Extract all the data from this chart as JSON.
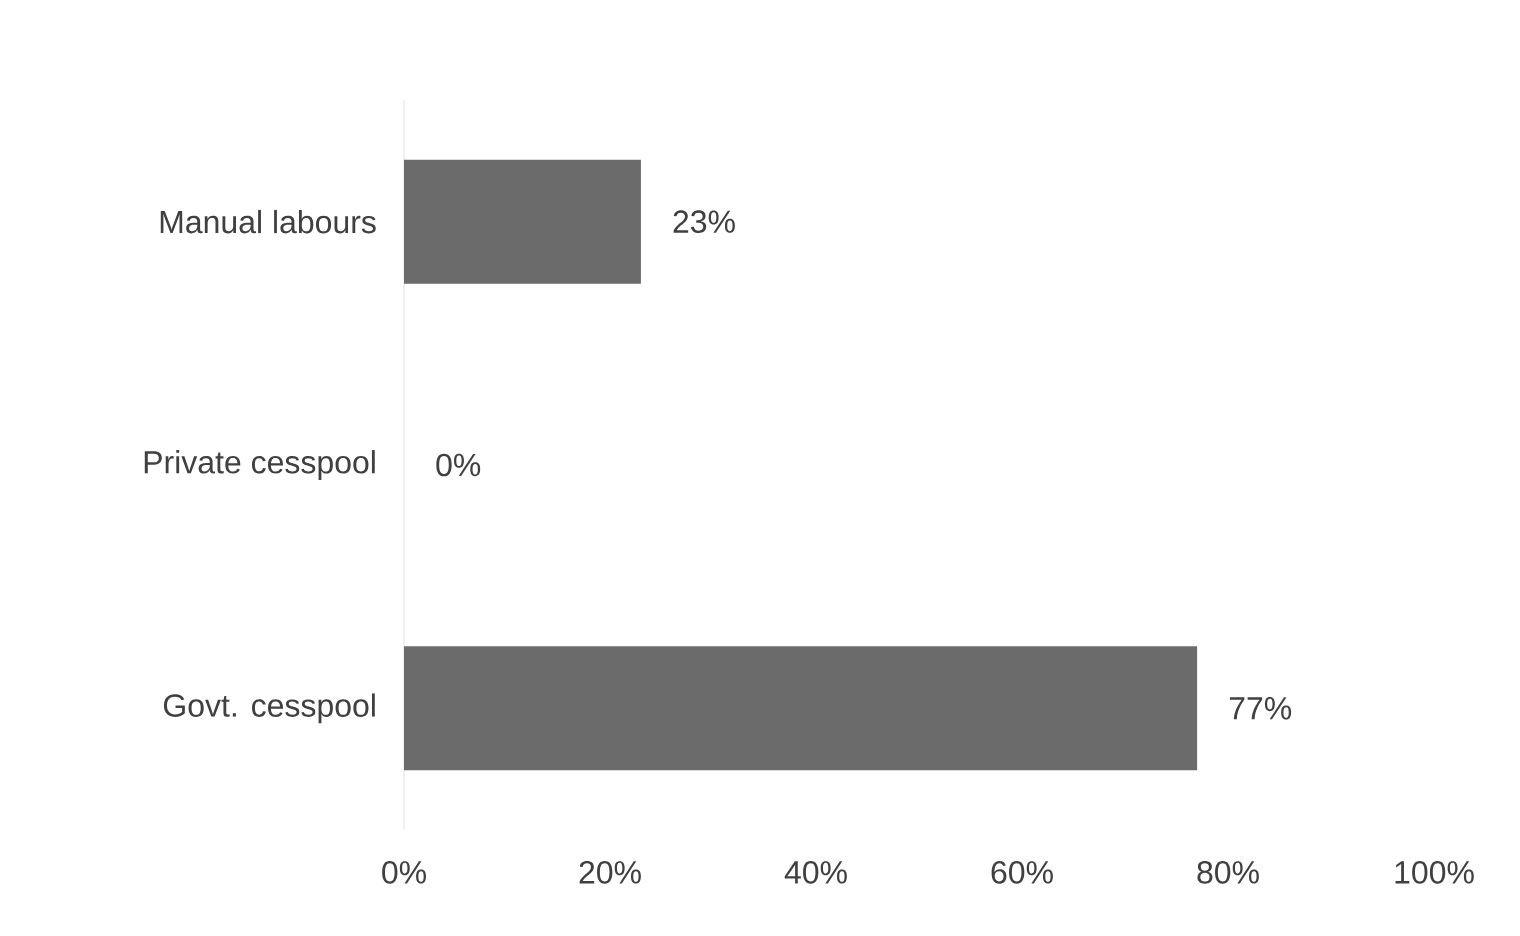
{
  "chart_data": {
    "type": "bar",
    "orientation": "horizontal",
    "categories": [
      "Manual labours",
      "Private cesspool",
      "Govt. cesspool"
    ],
    "values": [
      23,
      0,
      77
    ],
    "value_labels": [
      "23%",
      "0%",
      "77%"
    ],
    "color": "#6b6b6b",
    "xlim": [
      0,
      100
    ],
    "xticks": [
      {
        "value": 0,
        "label": "0%"
      },
      {
        "value": 20,
        "label": "20%"
      },
      {
        "value": 40,
        "label": "40%"
      },
      {
        "value": 60,
        "label": "60%"
      },
      {
        "value": 80,
        "label": "80%"
      },
      {
        "value": 100,
        "label": "100%"
      }
    ],
    "grid": false
  }
}
